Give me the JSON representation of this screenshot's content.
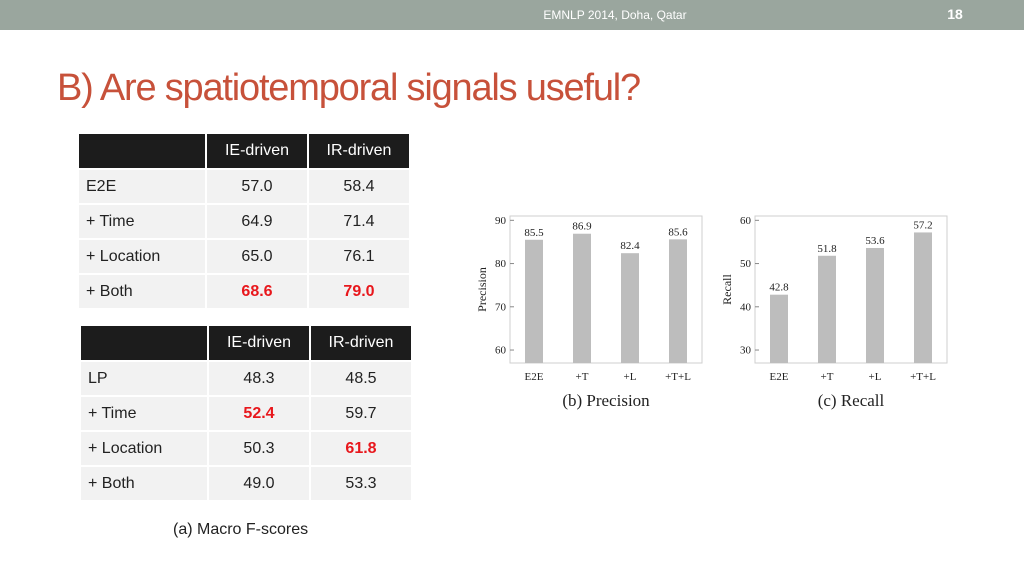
{
  "header": {
    "conference": "EMNLP 2014, Doha, Qatar",
    "page_number": "18"
  },
  "title": "B) Are spatiotemporal signals useful?",
  "table1": {
    "headers": [
      "",
      "IE-driven",
      "IR-driven"
    ],
    "rows": [
      {
        "label": "E2E",
        "ie": "57.0",
        "ir": "58.4"
      },
      {
        "label": "+ Time",
        "ie": "64.9",
        "ir": "71.4"
      },
      {
        "label": "+ Location",
        "ie": "65.0",
        "ir": "76.1"
      },
      {
        "label": "+ Both",
        "ie": "68.6",
        "ir": "79.0"
      }
    ]
  },
  "table2": {
    "headers": [
      "",
      "IE-driven",
      "IR-driven"
    ],
    "rows": [
      {
        "label": "LP",
        "ie": "48.3",
        "ir": "48.5"
      },
      {
        "label": "+ Time",
        "ie": "52.4",
        "ir": "59.7"
      },
      {
        "label": "+ Location",
        "ie": "50.3",
        "ir": "61.8"
      },
      {
        "label": "+ Both",
        "ie": "49.0",
        "ir": "53.3"
      }
    ]
  },
  "tables_caption": "(a) Macro F-scores",
  "colors": {
    "title": "#c7513a",
    "highlight": "#e8171c",
    "bar": "#bdbdbd",
    "header_bg": "#1c1c1c",
    "topbar": "#9aa69e"
  },
  "chart_data": [
    {
      "type": "bar",
      "categories": [
        "E2E",
        "+T",
        "+L",
        "+T+L"
      ],
      "values": [
        85.5,
        86.9,
        82.4,
        85.6
      ],
      "value_labels": [
        "85.5",
        "86.9",
        "82.4",
        "85.6"
      ],
      "ylabel": "Precision",
      "caption": "(b) Precision",
      "ylim": [
        57,
        91
      ],
      "yticks": [
        60,
        70,
        80,
        90
      ],
      "ytick_labels": [
        "60",
        "70",
        "80",
        "90"
      ]
    },
    {
      "type": "bar",
      "categories": [
        "E2E",
        "+T",
        "+L",
        "+T+L"
      ],
      "values": [
        42.8,
        51.8,
        53.6,
        57.2
      ],
      "value_labels": [
        "42.8",
        "51.8",
        "53.6",
        "57.2"
      ],
      "ylabel": "Recall",
      "caption": "(c) Recall",
      "ylim": [
        27,
        61
      ],
      "yticks": [
        30,
        40,
        50,
        60
      ],
      "ytick_labels": [
        "30",
        "40",
        "50",
        "60"
      ]
    }
  ]
}
